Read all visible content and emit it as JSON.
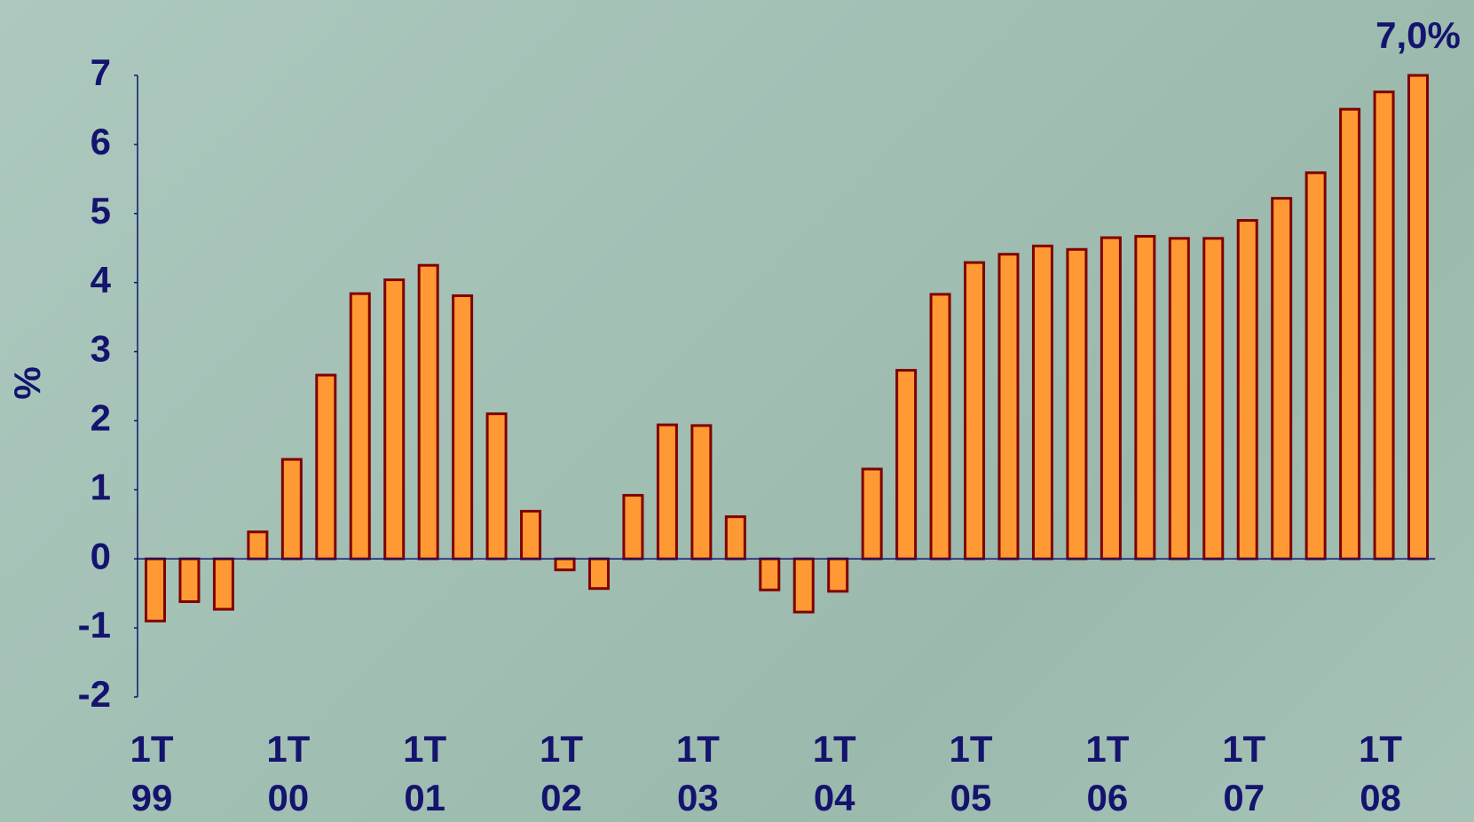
{
  "chart_data": {
    "type": "bar",
    "y_label": "%",
    "categories": [
      "1T 99",
      null,
      null,
      null,
      "1T 00",
      null,
      null,
      null,
      "1T 01",
      null,
      null,
      null,
      "1T 02",
      null,
      null,
      null,
      "1T 03",
      null,
      null,
      null,
      "1T 04",
      null,
      null,
      null,
      "1T 05",
      null,
      null,
      null,
      "1T 06",
      null,
      null,
      null,
      "1T 07",
      null,
      null,
      null,
      "1T 08",
      null
    ],
    "values": [
      -0.9,
      -0.62,
      -0.73,
      0.39,
      1.44,
      2.66,
      3.84,
      4.04,
      4.25,
      3.81,
      2.1,
      0.69,
      -0.16,
      -0.43,
      0.92,
      1.94,
      1.93,
      0.61,
      -0.45,
      -0.77,
      -0.47,
      1.3,
      2.73,
      3.83,
      4.29,
      4.41,
      4.53,
      4.48,
      4.65,
      4.67,
      4.64,
      4.64,
      4.9,
      5.22,
      5.59,
      6.51,
      6.76,
      7.0
    ],
    "value_labels": [
      null,
      null,
      null,
      null,
      null,
      null,
      null,
      null,
      null,
      null,
      null,
      null,
      null,
      null,
      null,
      null,
      null,
      null,
      null,
      null,
      null,
      null,
      null,
      null,
      null,
      null,
      null,
      null,
      null,
      null,
      null,
      null,
      null,
      null,
      null,
      null,
      null,
      "7,0%"
    ],
    "color": "#ff9933",
    "edge_color": "#800000",
    "ylim": [
      -2,
      7
    ],
    "yticks": [
      -2,
      -1,
      0,
      1,
      2,
      3,
      4,
      5,
      6,
      7
    ]
  }
}
